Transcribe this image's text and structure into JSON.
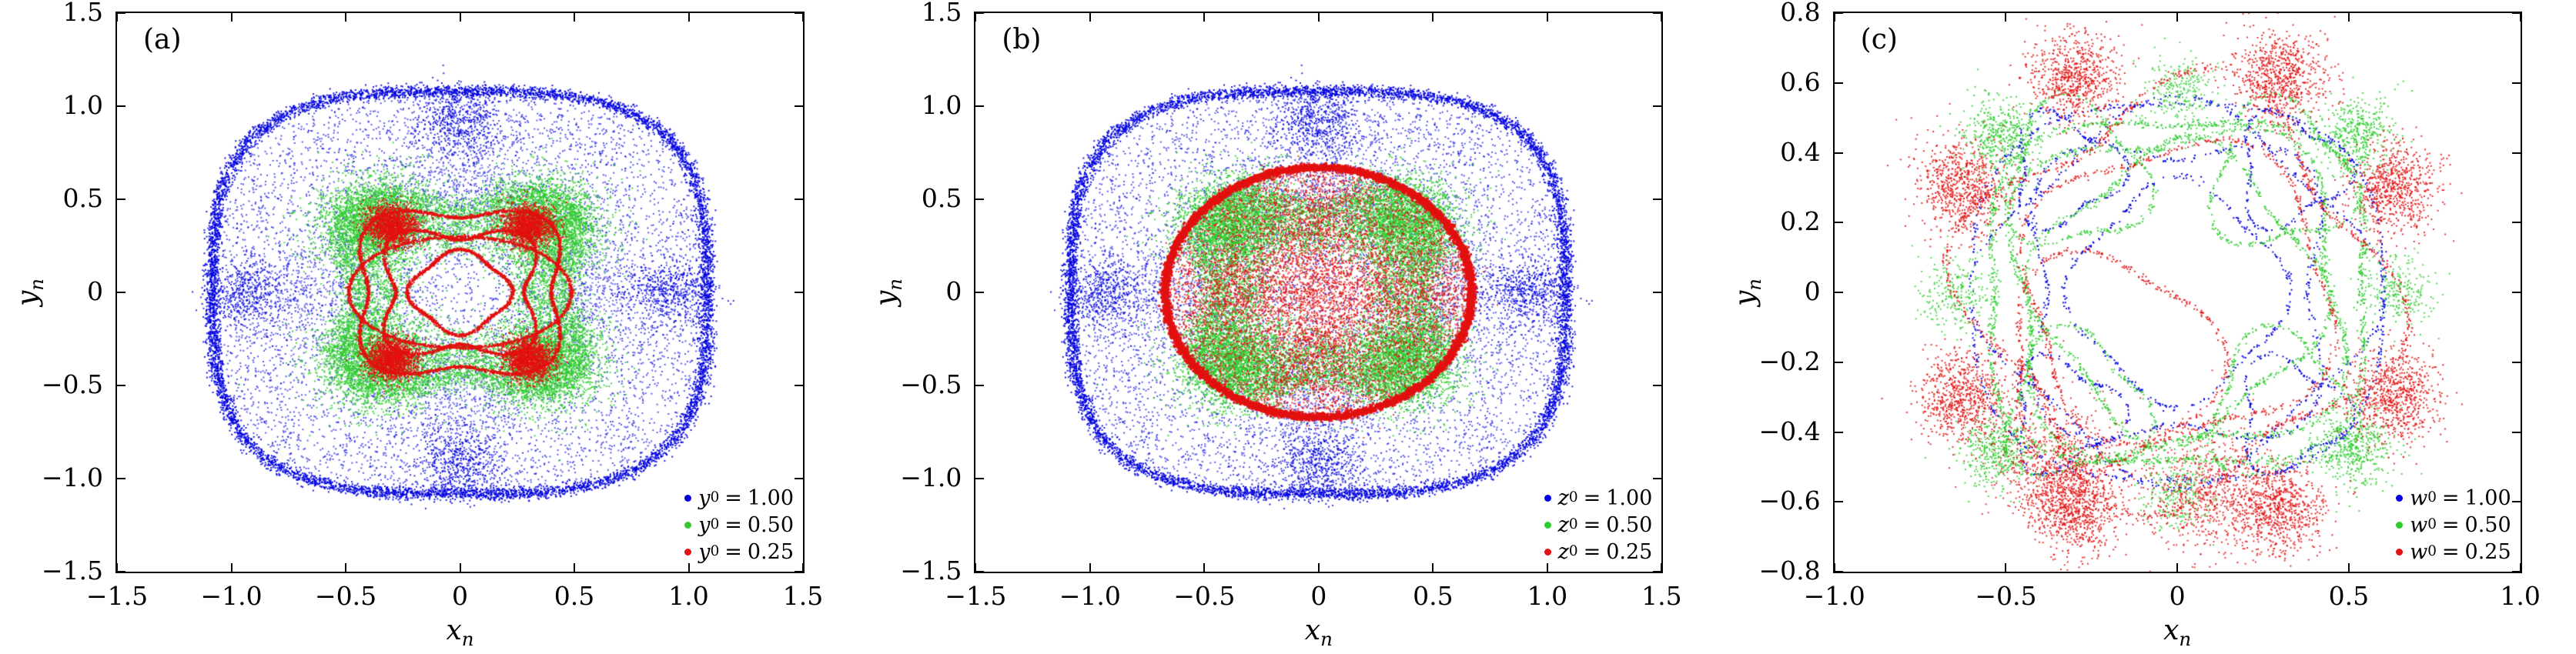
{
  "symbols": {
    "equals": "="
  },
  "figure": {
    "background": "#ffffff",
    "axis_color": "#000000"
  },
  "chart_data": [
    {
      "id": "a",
      "type": "scatter",
      "panel_label": "(a)",
      "xlabel": {
        "var": "x",
        "sub": "n"
      },
      "ylabel": {
        "var": "y",
        "sub": "n"
      },
      "xlim": [
        -1.5,
        1.5
      ],
      "ylim": [
        -1.5,
        1.5
      ],
      "grid": false,
      "legend_position": "lower right",
      "xticks": [
        {
          "v": -1.5,
          "label": "−1.5"
        },
        {
          "v": -1.0,
          "label": "−1.0"
        },
        {
          "v": -0.5,
          "label": "−0.5"
        },
        {
          "v": 0,
          "label": "0"
        },
        {
          "v": 0.5,
          "label": "0.5"
        },
        {
          "v": 1.0,
          "label": "1.0"
        },
        {
          "v": 1.5,
          "label": "1.5"
        }
      ],
      "yticks": [
        {
          "v": -1.5,
          "label": "−1.5"
        },
        {
          "v": -1.0,
          "label": "−1.0"
        },
        {
          "v": -0.5,
          "label": "−0.5"
        },
        {
          "v": 0,
          "label": "0"
        },
        {
          "v": 0.5,
          "label": "0.5"
        },
        {
          "v": 1.0,
          "label": "1.0"
        },
        {
          "v": 1.5,
          "label": "1.5"
        }
      ],
      "legend": [
        {
          "var": "y",
          "sub": "0",
          "value": "1.00"
        },
        {
          "var": "y",
          "sub": "0",
          "value": "0.50"
        },
        {
          "var": "y",
          "sub": "0",
          "value": "0.25"
        }
      ],
      "series": [
        {
          "color": "#0000e0",
          "specs": [
            {
              "kind": "ring",
              "rx": 1.08,
              "ry": 1.08,
              "p": 3.2,
              "sigma": 0.018,
              "count": 7000,
              "alpha": 0.9
            },
            {
              "kind": "sea",
              "rx": 1.04,
              "ry": 1.04,
              "p": 3.2,
              "count": 6500,
              "alpha": 0.65
            },
            {
              "kind": "blobs",
              "centers": [
                [
                  0,
                  0.92
                ],
                [
                  0,
                  -0.92
                ],
                [
                  0.92,
                  0
                ],
                [
                  -0.92,
                  0
                ]
              ],
              "sigma": 0.09,
              "count": 450,
              "alpha": 0.8
            },
            {
              "kind": "blobs",
              "centers": [
                [
                  0,
                  0.6
                ],
                [
                  0,
                  -0.6
                ],
                [
                  0.6,
                  0
                ],
                [
                  -0.6,
                  0
                ]
              ],
              "sigma": 0.12,
              "count": 260,
              "alpha": 0.55
            }
          ]
        },
        {
          "color": "#2ecc2e",
          "specs": [
            {
              "kind": "blobs",
              "centers": [
                [
                  0.36,
                  0.36
                ],
                [
                  -0.36,
                  0.36
                ],
                [
                  0.36,
                  -0.36
                ],
                [
                  -0.36,
                  -0.36
                ]
              ],
              "sigma": 0.13,
              "count": 2700,
              "alpha": 0.85
            },
            {
              "kind": "curve",
              "r0": 0.55,
              "a": 0.2,
              "k": 4,
              "phase": 3.1416,
              "jitter": 0.035,
              "count": 3200,
              "alpha": 0.8
            },
            {
              "kind": "curve",
              "r0": 0.42,
              "a": 0.28,
              "k": 4,
              "phase": 3.1416,
              "jitter": 0.05,
              "count": 2600,
              "alpha": 0.8
            }
          ]
        },
        {
          "color": "#e31111",
          "specs": [
            {
              "kind": "blobs",
              "centers": [
                [
                  0.3,
                  0.36
                ],
                [
                  -0.3,
                  0.36
                ],
                [
                  0.3,
                  -0.36
                ],
                [
                  -0.3,
                  -0.36
                ]
              ],
              "sigma": 0.055,
              "count": 1500,
              "alpha": 0.9
            },
            {
              "kind": "curve",
              "r0": 0.47,
              "a": 0.15,
              "k": 4,
              "phase": 3.1416,
              "jitter": 0.004,
              "count": 2600,
              "alpha": 0.95
            },
            {
              "kind": "curve",
              "r0": 0.35,
              "a": 0.2,
              "k": 4,
              "phase": 3.1416,
              "jitter": 0.004,
              "count": 2200,
              "alpha": 0.95
            },
            {
              "kind": "curve",
              "r0": 0.21,
              "a": 0.1,
              "k": 4,
              "phase": 0,
              "jitter": 0.004,
              "count": 1400,
              "alpha": 0.95
            },
            {
              "kind": "curve",
              "r0": 0.45,
              "a": 0.08,
              "k": 2,
              "phase": 0,
              "sy": 0.72,
              "jitter": 0.004,
              "count": 1700,
              "alpha": 0.95
            }
          ]
        }
      ]
    },
    {
      "id": "b",
      "type": "scatter",
      "panel_label": "(b)",
      "xlabel": {
        "var": "x",
        "sub": "n"
      },
      "ylabel": {
        "var": "y",
        "sub": "n"
      },
      "xlim": [
        -1.5,
        1.5
      ],
      "ylim": [
        -1.5,
        1.5
      ],
      "grid": false,
      "legend_position": "lower right",
      "xticks": [
        {
          "v": -1.5,
          "label": "−1.5"
        },
        {
          "v": -1.0,
          "label": "−1.0"
        },
        {
          "v": -0.5,
          "label": "−0.5"
        },
        {
          "v": 0,
          "label": "0"
        },
        {
          "v": 0.5,
          "label": "0.5"
        },
        {
          "v": 1.0,
          "label": "1.0"
        },
        {
          "v": 1.5,
          "label": "1.5"
        }
      ],
      "yticks": [
        {
          "v": -1.5,
          "label": "−1.5"
        },
        {
          "v": -1.0,
          "label": "−1.0"
        },
        {
          "v": -0.5,
          "label": "−0.5"
        },
        {
          "v": 0,
          "label": "0"
        },
        {
          "v": 0.5,
          "label": "0.5"
        },
        {
          "v": 1.0,
          "label": "1.0"
        },
        {
          "v": 1.5,
          "label": "1.5"
        }
      ],
      "legend": [
        {
          "var": "z",
          "sub": "0",
          "value": "1.00"
        },
        {
          "var": "z",
          "sub": "0",
          "value": "0.50"
        },
        {
          "var": "z",
          "sub": "0",
          "value": "0.25"
        }
      ],
      "series": [
        {
          "color": "#0000e0",
          "specs": [
            {
              "kind": "ring",
              "rx": 1.08,
              "ry": 1.08,
              "p": 3.2,
              "sigma": 0.018,
              "count": 7000,
              "alpha": 0.9
            },
            {
              "kind": "sea",
              "rx": 1.04,
              "ry": 1.04,
              "p": 3.2,
              "count": 6500,
              "alpha": 0.65
            },
            {
              "kind": "blobs",
              "centers": [
                [
                  0,
                  0.92
                ],
                [
                  0,
                  -0.92
                ],
                [
                  0.92,
                  0
                ],
                [
                  -0.92,
                  0
                ]
              ],
              "sigma": 0.09,
              "count": 450,
              "alpha": 0.8
            },
            {
              "kind": "blobs",
              "centers": [
                [
                  0,
                  0.6
                ],
                [
                  0,
                  -0.6
                ],
                [
                  0.6,
                  0
                ],
                [
                  -0.6,
                  0
                ]
              ],
              "sigma": 0.12,
              "count": 260,
              "alpha": 0.55
            }
          ]
        },
        {
          "color": "#2ecc2e",
          "specs": [
            {
              "kind": "blobs",
              "centers": [
                [
                  0.36,
                  0.36
                ],
                [
                  -0.36,
                  0.36
                ],
                [
                  0.36,
                  -0.36
                ],
                [
                  -0.36,
                  -0.36
                ]
              ],
              "sigma": 0.13,
              "count": 2700,
              "alpha": 0.85
            },
            {
              "kind": "curve",
              "r0": 0.55,
              "a": 0.2,
              "k": 4,
              "phase": 3.1416,
              "jitter": 0.035,
              "count": 3200,
              "alpha": 0.8
            },
            {
              "kind": "curve",
              "r0": 0.42,
              "a": 0.28,
              "k": 4,
              "phase": 3.1416,
              "jitter": 0.05,
              "count": 2600,
              "alpha": 0.8
            }
          ]
        },
        {
          "color": "#e31111",
          "specs": [
            {
              "kind": "ring",
              "rx": 0.67,
              "ry": 0.67,
              "p": 2,
              "sigma": 0.009,
              "count": 8000,
              "size": 3,
              "alpha": 0.95
            },
            {
              "kind": "disk",
              "r": 0.655,
              "count": 5200,
              "alpha": 0.75
            },
            {
              "kind": "blobs",
              "centers": [
                [
                  0,
                  0
                ],
                [
                  0.35,
                  0
                ],
                [
                  -0.35,
                  0
                ],
                [
                  0,
                  0.35
                ],
                [
                  0,
                  -0.35
                ]
              ],
              "sigma": 0.13,
              "count": 520,
              "alpha": 0.8
            }
          ]
        }
      ]
    },
    {
      "id": "c",
      "type": "scatter",
      "panel_label": "(c)",
      "xlabel": {
        "var": "x",
        "sub": "n"
      },
      "ylabel": {
        "var": "y",
        "sub": "n"
      },
      "xlim": [
        -1.0,
        1.0
      ],
      "ylim": [
        -0.8,
        0.8
      ],
      "grid": false,
      "legend_position": "lower right",
      "xticks": [
        {
          "v": -1.0,
          "label": "−1.0"
        },
        {
          "v": -0.5,
          "label": "−0.5"
        },
        {
          "v": 0,
          "label": "0"
        },
        {
          "v": 0.5,
          "label": "0.5"
        },
        {
          "v": 1.0,
          "label": "1.0"
        }
      ],
      "yticks": [
        {
          "v": -0.8,
          "label": "−0.8"
        },
        {
          "v": -0.6,
          "label": "−0.6"
        },
        {
          "v": -0.4,
          "label": "−0.4"
        },
        {
          "v": -0.2,
          "label": "−0.2"
        },
        {
          "v": 0,
          "label": "0"
        },
        {
          "v": 0.2,
          "label": "0.2"
        },
        {
          "v": 0.4,
          "label": "0.4"
        },
        {
          "v": 0.6,
          "label": "0.6"
        },
        {
          "v": 0.8,
          "label": "0.8"
        }
      ],
      "legend": [
        {
          "var": "w",
          "sub": "0",
          "value": "1.00"
        },
        {
          "var": "w",
          "sub": "0",
          "value": "0.50"
        },
        {
          "var": "w",
          "sub": "0",
          "value": "0.25"
        }
      ],
      "series": [
        {
          "color": "#0000e0",
          "specs": [
            {
              "kind": "curve",
              "r0": 0.63,
              "a": 0.05,
              "k": 4,
              "phase": 3.1416,
              "sy": 0.9,
              "jitter": 0.004,
              "count": 430,
              "alpha": 0.95
            },
            {
              "kind": "curve",
              "r0": 0.55,
              "a": 0.1,
              "k": 4,
              "phase": 0,
              "sy": 0.93,
              "jitter": 0.004,
              "count": 390,
              "alpha": 0.95
            },
            {
              "kind": "curve",
              "r0": 0.45,
              "a": 0.16,
              "k": 4,
              "phase": 3.1416,
              "jitter": 0.004,
              "count": 350,
              "alpha": 0.95
            },
            {
              "kind": "curve",
              "r0": 0.3,
              "a": 0.1,
              "k": 4,
              "phase": 0,
              "jitter": 0.004,
              "count": 280,
              "alpha": 0.95
            },
            {
              "kind": "curve",
              "centers": [
                [
                  0.33,
                  0.35
                ],
                [
                  -0.33,
                  0.35
                ],
                [
                  0.33,
                  -0.35
                ],
                [
                  -0.33,
                  -0.35
                ]
              ],
              "r0": 0.15,
              "a": 0.25,
              "k": 3,
              "phase": 0,
              "jitter": 0.003,
              "count": 180,
              "alpha": 0.95
            }
          ]
        },
        {
          "color": "#2ecc2e",
          "specs": [
            {
              "kind": "curve",
              "r0": 0.57,
              "a": 0.09,
              "k": 4,
              "phase": 3.1416,
              "sx": 1.03,
              "sy": 0.92,
              "jitter": 0.006,
              "count": 950,
              "alpha": 0.9
            },
            {
              "kind": "curve",
              "r0": 0.5,
              "a": 0.13,
              "k": 4,
              "phase": 2.6,
              "sy": 0.95,
              "jitter": 0.006,
              "count": 820,
              "alpha": 0.9
            },
            {
              "kind": "curve",
              "r0": 0.4,
              "a": 0.12,
              "k": 4,
              "phase": 0.5,
              "jitter": 0.005,
              "count": 620,
              "alpha": 0.9
            },
            {
              "kind": "curve",
              "centers": [
                [
                  0.3,
                  0.33
                ],
                [
                  -0.3,
                  0.33
                ],
                [
                  0.3,
                  -0.33
                ],
                [
                  -0.3,
                  -0.33
                ]
              ],
              "r0": 0.2,
              "a": 0.2,
              "k": 3,
              "phase": 1,
              "jitter": 0.004,
              "count": 260,
              "alpha": 0.9
            },
            {
              "kind": "blobs",
              "centers": [
                [
                  -0.52,
                  0.45
                ],
                [
                  0.52,
                  0.45
                ],
                [
                  -0.52,
                  -0.45
                ],
                [
                  0.52,
                  -0.45
                ]
              ],
              "sigma": 0.055,
              "count": 430,
              "alpha": 0.85
            },
            {
              "kind": "blobs",
              "centers": [
                [
                  -0.65,
                  0
                ],
                [
                  0.65,
                  0
                ],
                [
                  0,
                  0.58
                ],
                [
                  0,
                  -0.58
                ]
              ],
              "sigma": 0.05,
              "count": 260,
              "alpha": 0.8
            }
          ]
        },
        {
          "color": "#e31111",
          "specs": [
            {
              "kind": "blobs",
              "centers": [
                [
                  0.3,
                  0.62
                ],
                [
                  -0.3,
                  0.62
                ],
                [
                  0.3,
                  -0.62
                ],
                [
                  -0.3,
                  -0.62
                ],
                [
                  0.63,
                  0.3
                ],
                [
                  -0.63,
                  0.3
                ],
                [
                  0.63,
                  -0.3
                ],
                [
                  -0.63,
                  -0.3
                ]
              ],
              "sigma": 0.065,
              "count": 720,
              "alpha": 0.85
            },
            {
              "kind": "curve",
              "r0": 0.56,
              "a": 0.16,
              "k": 4,
              "phase": 0.7854,
              "sx": 1.05,
              "jitter": 0.006,
              "count": 820,
              "alpha": 0.9
            },
            {
              "kind": "curve",
              "r0": 0.45,
              "a": 0.1,
              "k": 4,
              "phase": 2,
              "sy": 0.95,
              "jitter": 0.005,
              "count": 520,
              "alpha": 0.9
            },
            {
              "kind": "curve",
              "centers": [
                [
                  -0.2,
                  -0.2
                ]
              ],
              "r0": 0.3,
              "a": 0.15,
              "k": 3,
              "phase": 0,
              "jitter": 0.005,
              "count": 360,
              "alpha": 0.9
            },
            {
              "kind": "blobs",
              "centers": [
                [
                  -0.35,
                  -0.5
                ],
                [
                  0.1,
                  -0.58
                ]
              ],
              "sigma": 0.09,
              "count": 700,
              "alpha": 0.8
            }
          ]
        }
      ]
    }
  ]
}
